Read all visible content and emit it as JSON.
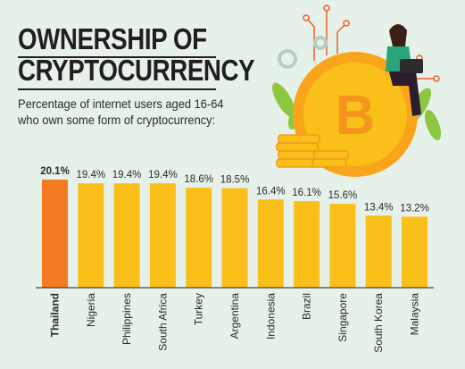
{
  "header": {
    "title_line1": "OWNERSHIP OF",
    "title_line2": "CRYPTOCURRENCY",
    "subtitle_line1": "Percentage of internet users aged 16-64",
    "subtitle_line2": "who own some form of cryptocurrency:"
  },
  "colors": {
    "background": "#e6f1ea",
    "highlight_bar": "#f47c20",
    "bar": "#fbbf1a",
    "coin": "#f9a51c",
    "leaf": "#8dc63f"
  },
  "illustration": {
    "coin_icon": "bitcoin-icon",
    "figure": "person-with-laptop-icon"
  },
  "chart_data": {
    "type": "bar",
    "title": "OWNERSHIP OF CRYPTOCURRENCY",
    "subtitle": "Percentage of internet users aged 16-64 who own some form of cryptocurrency:",
    "categories": [
      "Thailand",
      "Nigeria",
      "Philippines",
      "South Africa",
      "Turkey",
      "Argentina",
      "Indonesia",
      "Brazil",
      "Singapore",
      "South Korea",
      "Malaysia"
    ],
    "values": [
      20.1,
      19.4,
      19.4,
      19.4,
      18.6,
      18.5,
      16.4,
      16.1,
      15.6,
      13.4,
      13.2
    ],
    "labels": [
      "20.1%",
      "19.4%",
      "19.4%",
      "19.4%",
      "18.6%",
      "18.5%",
      "16.4%",
      "16.1%",
      "15.6%",
      "13.4%",
      "13.2%"
    ],
    "highlight_index": 0,
    "unit": "%",
    "ylim": [
      0,
      20.1
    ],
    "grid": false,
    "legend": "none"
  }
}
